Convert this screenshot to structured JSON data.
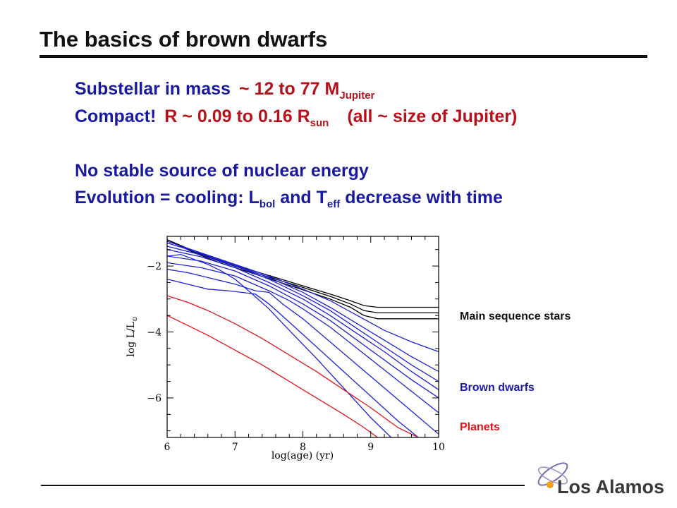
{
  "slide": {
    "title": "The basics of brown dwarfs",
    "line1": {
      "a": "Substellar in mass",
      "b": "~ 12 to 77 M",
      "b_sub": "Jupiter"
    },
    "line2": {
      "a": "Compact!",
      "b": "R ~ 0.09 to 0.16 R",
      "b_sub": "sun",
      "c": "(all ~ size of Jupiter)"
    },
    "line3": {
      "text": "No stable source of nuclear energy"
    },
    "line4": {
      "a": "Evolution = cooling: L",
      "a_sub": "bol",
      "b": " and T",
      "b_sub": "eff",
      "c": " decrease with time"
    }
  },
  "legend": {
    "stars": "Main sequence stars",
    "brown_dwarfs": "Brown dwarfs",
    "planets": "Planets"
  },
  "logo": {
    "text": "Los Alamos"
  },
  "colors": {
    "stars": "#000000",
    "brown_dwarfs": "#1e22d6",
    "planets": "#e0131d",
    "title_blue": "#1a1aa0",
    "accent_red": "#b5121b"
  },
  "chart_data": {
    "type": "line",
    "xlabel": "log(age)  (yr)",
    "ylabel": "log L/L",
    "ylabel_sub": "⊙",
    "xlim": [
      6,
      10
    ],
    "ylim": [
      -7.2,
      -1.1
    ],
    "xticks": [
      "6",
      "7",
      "8",
      "9",
      "10"
    ],
    "yticks": [
      "−2",
      "−4",
      "−6"
    ],
    "ytick_values": [
      -2,
      -4,
      -6
    ],
    "xtick_values": [
      6,
      7,
      8,
      9,
      10
    ],
    "series": [
      {
        "group": "stars",
        "x": [
          6.0,
          6.4,
          6.8,
          7.2,
          7.6,
          8.0,
          8.4,
          8.7,
          8.9,
          9.1,
          10.0
        ],
        "y": [
          -1.2,
          -1.55,
          -1.85,
          -2.1,
          -2.35,
          -2.6,
          -2.85,
          -3.05,
          -3.2,
          -3.25,
          -3.25
        ]
      },
      {
        "group": "stars",
        "x": [
          6.0,
          6.4,
          6.8,
          7.2,
          7.6,
          8.0,
          8.4,
          8.7,
          8.9,
          9.1,
          10.0
        ],
        "y": [
          -1.2,
          -1.57,
          -1.88,
          -2.14,
          -2.4,
          -2.65,
          -2.92,
          -3.15,
          -3.35,
          -3.42,
          -3.42
        ]
      },
      {
        "group": "stars",
        "x": [
          6.0,
          6.4,
          6.8,
          7.2,
          7.6,
          8.0,
          8.4,
          8.7,
          8.9,
          9.1,
          10.0
        ],
        "y": [
          -1.2,
          -1.6,
          -1.92,
          -2.18,
          -2.45,
          -2.72,
          -3.0,
          -3.25,
          -3.5,
          -3.6,
          -3.6
        ]
      },
      {
        "group": "brown_dwarfs",
        "x": [
          6.0,
          6.5,
          7.0,
          7.5,
          8.0,
          8.4,
          8.8,
          9.2,
          9.6,
          10.0
        ],
        "y": [
          -1.25,
          -1.6,
          -1.95,
          -2.3,
          -2.7,
          -3.05,
          -3.5,
          -3.95,
          -4.3,
          -4.6
        ]
      },
      {
        "group": "brown_dwarfs",
        "x": [
          6.0,
          6.5,
          7.0,
          7.5,
          8.0,
          8.4,
          8.8,
          9.2,
          9.6,
          10.0
        ],
        "y": [
          -1.3,
          -1.62,
          -1.98,
          -2.35,
          -2.8,
          -3.25,
          -3.75,
          -4.25,
          -4.75,
          -5.2
        ]
      },
      {
        "group": "brown_dwarfs",
        "x": [
          6.0,
          6.5,
          7.0,
          7.5,
          8.0,
          8.4,
          8.8,
          9.2,
          9.6,
          10.0
        ],
        "y": [
          -1.4,
          -1.66,
          -2.0,
          -2.4,
          -2.9,
          -3.35,
          -3.9,
          -4.45,
          -5.0,
          -5.5
        ]
      },
      {
        "group": "brown_dwarfs",
        "x": [
          6.0,
          6.5,
          7.0,
          7.5,
          8.0,
          8.4,
          8.8,
          9.2,
          9.6,
          10.0
        ],
        "y": [
          -1.5,
          -1.72,
          -2.05,
          -2.5,
          -3.0,
          -3.5,
          -4.05,
          -4.6,
          -5.2,
          -5.75
        ]
      },
      {
        "group": "brown_dwarfs",
        "x": [
          6.0,
          6.5,
          7.0,
          7.5,
          8.0,
          8.4,
          8.8,
          9.2,
          9.6,
          10.0
        ],
        "y": [
          -1.7,
          -1.85,
          -2.15,
          -2.6,
          -3.15,
          -3.65,
          -4.25,
          -4.85,
          -5.45,
          -6.0
        ]
      },
      {
        "group": "brown_dwarfs",
        "x": [
          6.0,
          6.5,
          7.0,
          7.5,
          7.8,
          8.0,
          8.4,
          8.8,
          9.2,
          9.6,
          10.0
        ],
        "y": [
          -1.9,
          -2.05,
          -2.3,
          -2.75,
          -3.05,
          -3.3,
          -3.85,
          -4.5,
          -5.15,
          -5.8,
          -6.45
        ]
      },
      {
        "group": "brown_dwarfs",
        "x": [
          6.0,
          6.3,
          6.6,
          7.0,
          7.3,
          7.5,
          7.7,
          8.0,
          8.4,
          8.8,
          9.2,
          9.6,
          10.0
        ],
        "y": [
          -2.1,
          -2.2,
          -2.35,
          -2.55,
          -2.75,
          -2.8,
          -3.15,
          -3.6,
          -4.3,
          -5.0,
          -5.7,
          -6.4,
          -7.1
        ]
      },
      {
        "group": "brown_dwarfs",
        "x": [
          6.0,
          6.3,
          6.6,
          6.9,
          7.1,
          7.3,
          7.5,
          7.8,
          8.2,
          8.6,
          9.0,
          9.4,
          9.7
        ],
        "y": [
          -2.4,
          -2.55,
          -2.7,
          -2.75,
          -2.8,
          -2.85,
          -3.15,
          -3.7,
          -4.45,
          -5.2,
          -5.95,
          -6.7,
          -7.2
        ]
      },
      {
        "group": "brown_dwarfs",
        "x": [
          6.0,
          6.2,
          6.4,
          6.6,
          6.8,
          7.0,
          7.2,
          7.5,
          7.8,
          8.2,
          8.6,
          9.0,
          9.3
        ],
        "y": [
          -1.7,
          -1.65,
          -1.8,
          -1.95,
          -2.15,
          -2.4,
          -2.75,
          -3.3,
          -3.95,
          -4.8,
          -5.7,
          -6.6,
          -7.2
        ]
      },
      {
        "group": "planets",
        "x": [
          6.0,
          6.3,
          6.6,
          7.0,
          7.4,
          7.8,
          8.2,
          8.6,
          9.0,
          9.4,
          9.7
        ],
        "y": [
          -2.9,
          -3.1,
          -3.35,
          -3.75,
          -4.2,
          -4.7,
          -5.2,
          -5.75,
          -6.3,
          -6.9,
          -7.2
        ]
      },
      {
        "group": "planets",
        "x": [
          6.0,
          6.3,
          6.6,
          7.0,
          7.4,
          7.8,
          8.2,
          8.6,
          8.9,
          9.1
        ],
        "y": [
          -3.5,
          -3.8,
          -4.1,
          -4.55,
          -5.0,
          -5.5,
          -6.0,
          -6.5,
          -6.9,
          -7.2
        ]
      }
    ]
  }
}
